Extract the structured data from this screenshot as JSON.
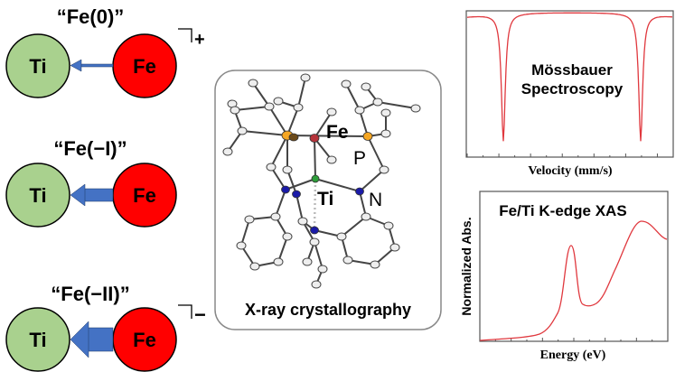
{
  "states": [
    {
      "label": "“Fe(0)”",
      "charge": "+",
      "left_atom": "Ti",
      "right_atom": "Fe"
    },
    {
      "label": "“Fe(−I)”",
      "charge": "",
      "left_atom": "Ti",
      "right_atom": "Fe"
    },
    {
      "label": "“Fe(−II)”",
      "charge": "−",
      "left_atom": "Ti",
      "right_atom": "Fe"
    }
  ],
  "crystal": {
    "caption": "X-ray crystallography",
    "atoms": {
      "fe": "Fe",
      "p": "P",
      "ti": "Ti",
      "n": "N"
    }
  },
  "mossbauer": {
    "title_line1": "Mössbauer",
    "title_line2": "Spectroscopy",
    "xlabel": "Velocity (mm/s)"
  },
  "xas": {
    "title": "Fe/Ti K-edge XAS",
    "xlabel": "Energy (eV)",
    "ylabel": "Normalized Abs."
  },
  "colors": {
    "ti": "#a9d18e",
    "fe": "#ff0000",
    "arrow": "#4472c4",
    "trace": "#e0383e"
  }
}
